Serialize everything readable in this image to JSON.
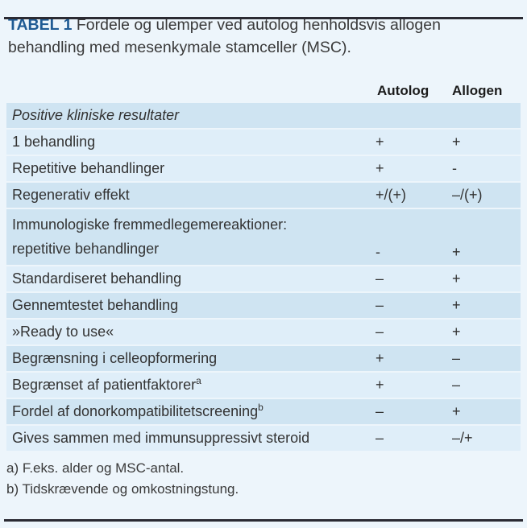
{
  "title": {
    "tag": "TABEL 1",
    "text": " Fordele og ulemper ved autolog henholdsvis allogen behandling med mesenkymale stamceller (MSC)."
  },
  "columns": {
    "autolog": "Autolog",
    "allogen": "Allogen"
  },
  "rows": [
    {
      "label": "Positive kliniske resultater",
      "autolog": "",
      "allogen": "",
      "shade": "dark",
      "italic": true
    },
    {
      "label": "1 behandling",
      "autolog": "+",
      "allogen": "+",
      "shade": "light"
    },
    {
      "label": "Repetitive behandlinger",
      "autolog": "+",
      "allogen": "-",
      "shade": "light"
    },
    {
      "label": "Regenerativ effekt",
      "autolog": "+/(+)",
      "allogen": "–/(+)",
      "shade": "dark"
    },
    {
      "label": "Immunologiske fremmedlegemereaktioner:",
      "label2": "repetitive behandlinger",
      "autolog": "-",
      "allogen": "+",
      "shade": "dark"
    },
    {
      "label": "Standardiseret behandling",
      "autolog": "–",
      "allogen": "+",
      "shade": "light"
    },
    {
      "label": "Gennemtestet behandling",
      "autolog": "–",
      "allogen": "+",
      "shade": "dark"
    },
    {
      "label": "»Ready to use«",
      "autolog": "–",
      "allogen": "+",
      "shade": "light"
    },
    {
      "label": "Begrænsning i celleopformering",
      "autolog": "+",
      "allogen": "–",
      "shade": "dark"
    },
    {
      "label": "Begrænset af patientfaktorer",
      "sup": "a",
      "autolog": "+",
      "allogen": "–",
      "shade": "light"
    },
    {
      "label": "Fordel af donorkompatibilitetscreening",
      "sup": "b",
      "autolog": "–",
      "allogen": "+",
      "shade": "dark"
    },
    {
      "label": "Gives sammen med immunsuppressivt steroid",
      "autolog": "–",
      "allogen": "–/+",
      "shade": "light"
    }
  ],
  "footnotes": [
    "a) F.eks. alder og MSC-antal.",
    "b) Tidskrævende og omkostningstung."
  ],
  "colors": {
    "page_bg": "#edf5fb",
    "band_dark": "#cfe4f2",
    "band_light": "#dfeef9",
    "accent_blue": "#1f5b94",
    "rule": "#2b2b33"
  }
}
